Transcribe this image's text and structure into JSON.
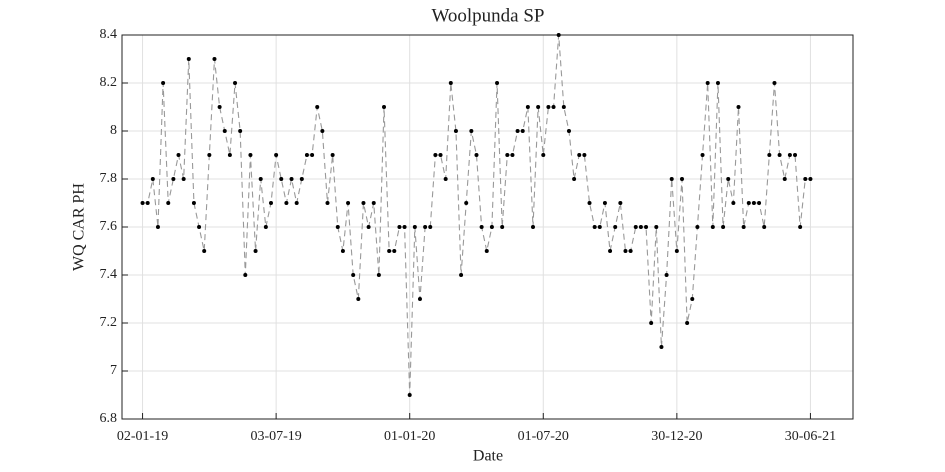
{
  "chart_data": {
    "type": "line",
    "title": "Woolpunda SP",
    "xlabel": "Date",
    "ylabel": "WQ CAR PH",
    "x": [
      "2019-01-02",
      "2019-01-09",
      "2019-01-16",
      "2019-01-23",
      "2019-01-30",
      "2019-02-06",
      "2019-02-13",
      "2019-02-20",
      "2019-02-27",
      "2019-03-06",
      "2019-03-13",
      "2019-03-20",
      "2019-03-27",
      "2019-04-03",
      "2019-04-10",
      "2019-04-17",
      "2019-04-24",
      "2019-05-01",
      "2019-05-08",
      "2019-05-15",
      "2019-05-22",
      "2019-05-29",
      "2019-06-05",
      "2019-06-12",
      "2019-06-19",
      "2019-06-26",
      "2019-07-03",
      "2019-07-10",
      "2019-07-17",
      "2019-07-24",
      "2019-07-31",
      "2019-08-07",
      "2019-08-14",
      "2019-08-21",
      "2019-08-28",
      "2019-09-04",
      "2019-09-11",
      "2019-09-18",
      "2019-09-25",
      "2019-10-02",
      "2019-10-09",
      "2019-10-16",
      "2019-10-23",
      "2019-10-30",
      "2019-11-06",
      "2019-11-13",
      "2019-11-20",
      "2019-11-27",
      "2019-12-04",
      "2019-12-11",
      "2019-12-18",
      "2019-12-25",
      "2020-01-01",
      "2020-01-08",
      "2020-01-15",
      "2020-01-22",
      "2020-01-29",
      "2020-02-05",
      "2020-02-12",
      "2020-02-19",
      "2020-02-26",
      "2020-03-04",
      "2020-03-11",
      "2020-03-18",
      "2020-03-25",
      "2020-04-01",
      "2020-04-08",
      "2020-04-15",
      "2020-04-22",
      "2020-04-29",
      "2020-05-06",
      "2020-05-13",
      "2020-05-20",
      "2020-05-27",
      "2020-06-03",
      "2020-06-10",
      "2020-06-17",
      "2020-06-24",
      "2020-07-01",
      "2020-07-08",
      "2020-07-15",
      "2020-07-22",
      "2020-07-29",
      "2020-08-05",
      "2020-08-12",
      "2020-08-19",
      "2020-08-26",
      "2020-09-02",
      "2020-09-09",
      "2020-09-16",
      "2020-09-23",
      "2020-09-30",
      "2020-10-07",
      "2020-10-14",
      "2020-10-21",
      "2020-10-28",
      "2020-11-04",
      "2020-11-11",
      "2020-11-18",
      "2020-11-25",
      "2020-12-02",
      "2020-12-09",
      "2020-12-16",
      "2020-12-23",
      "2020-12-30",
      "2021-01-06",
      "2021-01-13",
      "2021-01-20",
      "2021-01-27",
      "2021-02-03",
      "2021-02-10",
      "2021-02-17",
      "2021-02-24",
      "2021-03-03",
      "2021-03-10",
      "2021-03-17",
      "2021-03-24",
      "2021-03-31",
      "2021-04-07",
      "2021-04-14",
      "2021-04-21",
      "2021-04-28",
      "2021-05-05",
      "2021-05-12",
      "2021-05-19",
      "2021-05-26",
      "2021-06-02",
      "2021-06-09",
      "2021-06-16",
      "2021-06-23",
      "2021-06-30"
    ],
    "values": [
      7.7,
      7.7,
      7.8,
      7.6,
      8.2,
      7.7,
      7.8,
      7.9,
      7.8,
      8.3,
      7.7,
      7.6,
      7.5,
      7.9,
      8.3,
      8.1,
      8.0,
      7.9,
      8.2,
      8.0,
      7.4,
      7.9,
      7.5,
      7.8,
      7.6,
      7.7,
      7.9,
      7.8,
      7.7,
      7.8,
      7.7,
      7.8,
      7.9,
      7.9,
      8.1,
      8.0,
      7.7,
      7.9,
      7.6,
      7.5,
      7.7,
      7.4,
      7.3,
      7.7,
      7.6,
      7.7,
      7.4,
      8.1,
      7.5,
      7.5,
      7.6,
      7.6,
      6.9,
      7.6,
      7.3,
      7.6,
      7.6,
      7.9,
      7.9,
      7.8,
      8.2,
      8.0,
      7.4,
      7.7,
      8.0,
      7.9,
      7.6,
      7.5,
      7.6,
      8.2,
      7.6,
      7.9,
      7.9,
      8.0,
      8.0,
      8.1,
      7.6,
      8.1,
      7.9,
      8.1,
      8.1,
      8.4,
      8.1,
      8.0,
      7.8,
      7.9,
      7.9,
      7.7,
      7.6,
      7.6,
      7.7,
      7.5,
      7.6,
      7.7,
      7.5,
      7.5,
      7.6,
      7.6,
      7.6,
      7.2,
      7.6,
      7.1,
      7.4,
      7.8,
      7.5,
      7.8,
      7.2,
      7.3,
      7.6,
      7.9,
      8.2,
      7.6,
      8.2,
      7.6,
      7.8,
      7.7,
      8.1,
      7.6,
      7.7,
      7.7,
      7.7,
      7.6,
      7.9,
      8.2,
      7.9,
      7.8,
      7.9,
      7.9,
      7.6,
      7.8,
      7.8
    ],
    "color": "#999999",
    "marker_color": "#000000",
    "xlim": [
      "2018-12-05",
      "2021-08-27"
    ],
    "xticks": [
      {
        "value": "2019-01-02",
        "label": "02-01-19"
      },
      {
        "value": "2019-07-03",
        "label": "03-07-19"
      },
      {
        "value": "2020-01-01",
        "label": "01-01-20"
      },
      {
        "value": "2020-07-01",
        "label": "01-07-20"
      },
      {
        "value": "2020-12-30",
        "label": "30-12-20"
      },
      {
        "value": "2021-06-30",
        "label": "30-06-21"
      }
    ],
    "ylim": [
      6.8,
      8.4
    ],
    "yticks": [
      6.8,
      7,
      7.2,
      7.4,
      7.6,
      7.8,
      8,
      8.2,
      8.4
    ],
    "grid": true
  }
}
